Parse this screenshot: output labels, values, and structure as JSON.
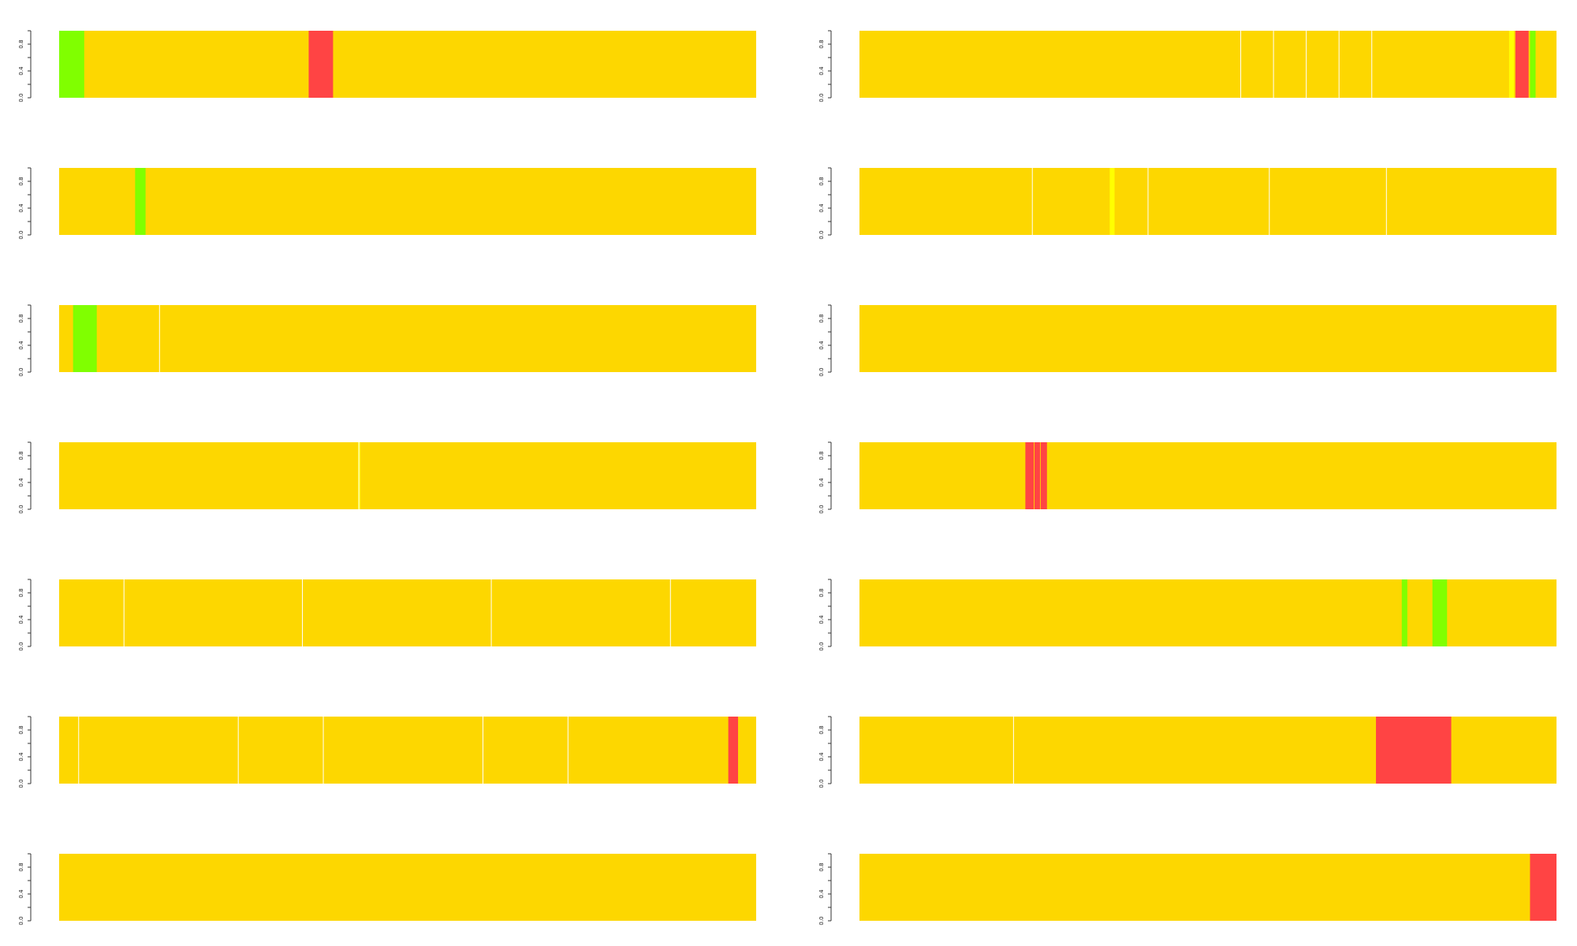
{
  "colors": {
    "base": "#FDD700",
    "red": "#FF4444",
    "green": "#80FF00",
    "yellow": "#FFFF00",
    "separator": "#ffffff",
    "axis": "#333333"
  },
  "chart_data": [
    {
      "type": "bar",
      "x_range": [
        0,
        1
      ],
      "ylim": [
        0,
        1
      ],
      "y_ticks": [
        "0.0",
        "0.4",
        "0.8"
      ],
      "separators": [],
      "segments": [
        {
          "start": 0.0,
          "end": 0.036,
          "color": "green"
        },
        {
          "start": 0.358,
          "end": 0.393,
          "color": "red"
        }
      ]
    },
    {
      "type": "bar",
      "x_range": [
        0,
        1
      ],
      "ylim": [
        0,
        1
      ],
      "y_ticks": [
        "0.0",
        "0.4",
        "0.8"
      ],
      "separators": [
        0.547,
        0.594,
        0.641,
        0.688,
        0.735
      ],
      "segments": [
        {
          "start": 0.932,
          "end": 0.939,
          "color": "yellow"
        },
        {
          "start": 0.941,
          "end": 0.96,
          "color": "red"
        },
        {
          "start": 0.962,
          "end": 0.97,
          "color": "green"
        }
      ]
    },
    {
      "type": "bar",
      "x_range": [
        0,
        1
      ],
      "ylim": [
        0,
        1
      ],
      "y_ticks": [
        "0.0",
        "0.4",
        "0.8"
      ],
      "separators": [],
      "segments": [
        {
          "start": 0.109,
          "end": 0.124,
          "color": "green"
        }
      ]
    },
    {
      "type": "bar",
      "x_range": [
        0,
        1
      ],
      "ylim": [
        0,
        1
      ],
      "y_ticks": [
        "0.0",
        "0.4",
        "0.8"
      ],
      "separators": [
        0.248,
        0.414,
        0.588,
        0.756
      ],
      "segments": [
        {
          "start": 0.359,
          "end": 0.366,
          "color": "yellow"
        }
      ]
    },
    {
      "type": "bar",
      "x_range": [
        0,
        1
      ],
      "ylim": [
        0,
        1
      ],
      "y_ticks": [
        "0.0",
        "0.4",
        "0.8"
      ],
      "separators": [
        0.144
      ],
      "segments": [
        {
          "start": 0.02,
          "end": 0.054,
          "color": "green"
        }
      ]
    },
    {
      "type": "bar",
      "x_range": [
        0,
        1
      ],
      "ylim": [
        0,
        1
      ],
      "y_ticks": [
        "0.0",
        "0.4",
        "0.8"
      ],
      "separators": [],
      "segments": []
    },
    {
      "type": "bar",
      "x_range": [
        0,
        1
      ],
      "ylim": [
        0,
        1
      ],
      "y_ticks": [
        "0.0",
        "0.4",
        "0.8"
      ],
      "separators": [
        0.43
      ],
      "segments": [
        {
          "start": 0.429,
          "end": 0.432,
          "color": "yellow"
        }
      ]
    },
    {
      "type": "bar",
      "x_range": [
        0,
        1
      ],
      "ylim": [
        0,
        1
      ],
      "y_ticks": [
        "0.0",
        "0.4",
        "0.8"
      ],
      "separators": [],
      "segments": [
        {
          "start": 0.238,
          "end": 0.25,
          "color": "red"
        },
        {
          "start": 0.251,
          "end": 0.259,
          "color": "red"
        },
        {
          "start": 0.26,
          "end": 0.269,
          "color": "red"
        }
      ]
    },
    {
      "type": "bar",
      "x_range": [
        0,
        1
      ],
      "ylim": [
        0,
        1
      ],
      "y_ticks": [
        "0.0",
        "0.4",
        "0.8"
      ],
      "separators": [
        0.093,
        0.349,
        0.62,
        0.877
      ],
      "segments": []
    },
    {
      "type": "bar",
      "x_range": [
        0,
        1
      ],
      "ylim": [
        0,
        1
      ],
      "y_ticks": [
        "0.0",
        "0.4",
        "0.8"
      ],
      "separators": [],
      "segments": [
        {
          "start": 0.778,
          "end": 0.786,
          "color": "green"
        },
        {
          "start": 0.822,
          "end": 0.843,
          "color": "green"
        }
      ]
    },
    {
      "type": "bar",
      "x_range": [
        0,
        1
      ],
      "ylim": [
        0,
        1
      ],
      "y_ticks": [
        "0.0",
        "0.4",
        "0.8"
      ],
      "separators": [
        0.028,
        0.257,
        0.379,
        0.608,
        0.73
      ],
      "segments": [
        {
          "start": 0.96,
          "end": 0.974,
          "color": "red"
        }
      ]
    },
    {
      "type": "bar",
      "x_range": [
        0,
        1
      ],
      "ylim": [
        0,
        1
      ],
      "y_ticks": [
        "0.0",
        "0.4",
        "0.8"
      ],
      "separators": [
        0.221
      ],
      "segments": [
        {
          "start": 0.741,
          "end": 0.849,
          "color": "red"
        }
      ]
    },
    {
      "type": "bar",
      "x_range": [
        0,
        1
      ],
      "ylim": [
        0,
        1
      ],
      "y_ticks": [
        "0.0",
        "0.4",
        "0.8"
      ],
      "separators": [],
      "segments": []
    },
    {
      "type": "bar",
      "x_range": [
        0,
        1
      ],
      "ylim": [
        0,
        1
      ],
      "y_ticks": [
        "0.0",
        "0.4",
        "0.8"
      ],
      "separators": [],
      "segments": [
        {
          "start": 0.962,
          "end": 1.0,
          "color": "red"
        }
      ]
    }
  ]
}
